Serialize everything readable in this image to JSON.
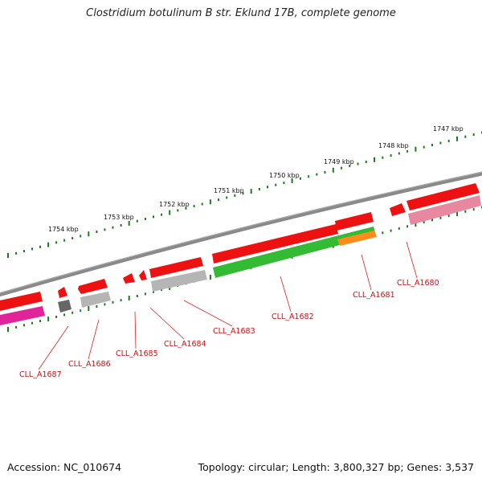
{
  "title": "Clostridium botulinum B str. Eklund 17B, complete genome",
  "footer": {
    "accession": "Accession: NC_010674",
    "summary": "Topology: circular; Length: 3,800,327 bp; Genes: 3,537"
  },
  "colors": {
    "backbone": "#8a8a8a",
    "tick": "#1f7a1f",
    "label": "#cc1111",
    "leader": "#e02020",
    "red": "#ee1111",
    "green": "#33bb33",
    "orange": "#ff8c1a",
    "grey": "#b5b5b5",
    "darkgrey": "#666666",
    "pink": "#e888a0",
    "magenta": "#e0259a"
  },
  "ruler": {
    "labels": [
      "1754 kbp",
      "1753 kbp",
      "1752 kbp",
      "1751 kbp",
      "1750 kbp",
      "1749 kbp",
      "1748 kbp",
      "1747 kbp"
    ]
  },
  "genes": {
    "labels": [
      "CLL_A1687",
      "CLL_A1686",
      "CLL_A1685",
      "CLL_A1684",
      "CLL_A1683",
      "CLL_A1682",
      "CLL_A1681",
      "CLL_A1680"
    ]
  }
}
